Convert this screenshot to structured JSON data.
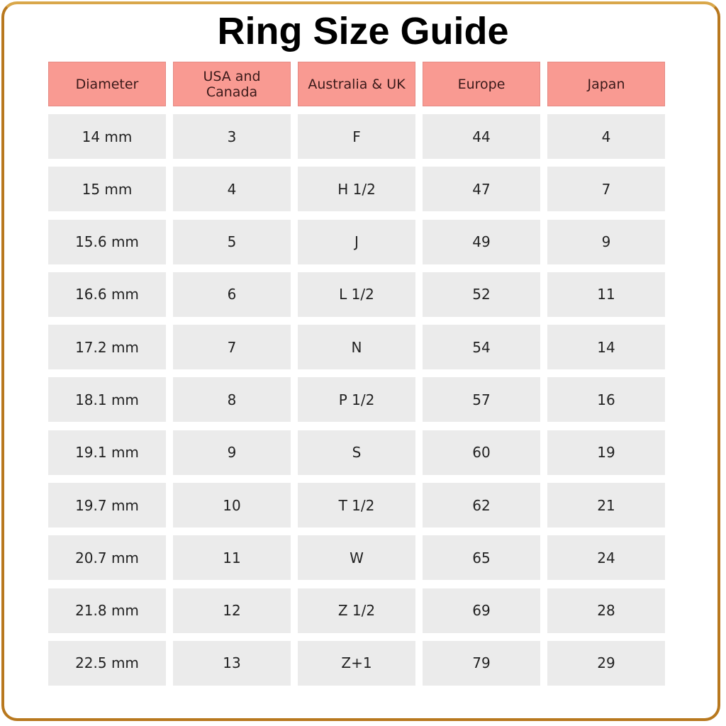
{
  "title": "Ring Size Guide",
  "colors": {
    "header": "#f99a92",
    "cell": "#ebebeb",
    "border": "#b8781e"
  },
  "headers": [
    "Diameter",
    "USA and Canada",
    "Australia & UK",
    "Europe",
    "Japan"
  ],
  "rows": [
    [
      "14 mm",
      "3",
      "F",
      "44",
      "4"
    ],
    [
      "15 mm",
      "4",
      "H 1/2",
      "47",
      "7"
    ],
    [
      "15.6 mm",
      "5",
      "J",
      "49",
      "9"
    ],
    [
      "16.6 mm",
      "6",
      "L 1/2",
      "52",
      "11"
    ],
    [
      "17.2 mm",
      "7",
      "N",
      "54",
      "14"
    ],
    [
      "18.1 mm",
      "8",
      "P 1/2",
      "57",
      "16"
    ],
    [
      "19.1 mm",
      "9",
      "S",
      "60",
      "19"
    ],
    [
      "19.7 mm",
      "10",
      "T 1/2",
      "62",
      "21"
    ],
    [
      "20.7 mm",
      "11",
      "W",
      "65",
      "24"
    ],
    [
      "21.8 mm",
      "12",
      "Z 1/2",
      "69",
      "28"
    ],
    [
      "22.5 mm",
      "13",
      "Z+1",
      "79",
      "29"
    ]
  ]
}
